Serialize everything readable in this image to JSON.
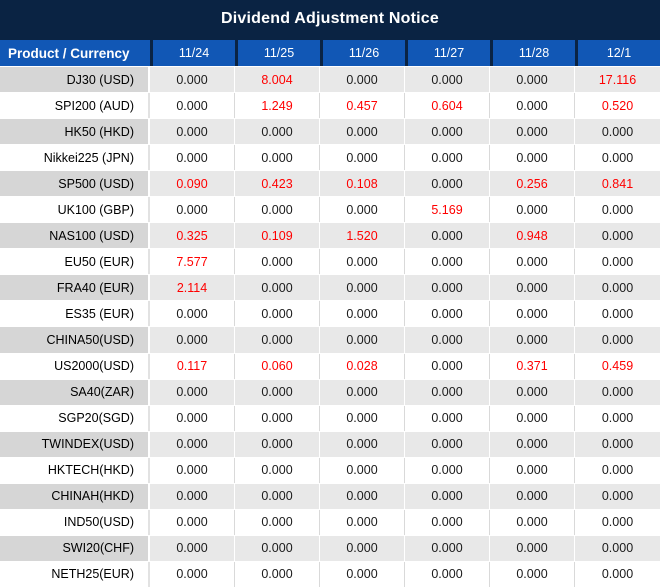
{
  "title": "Dividend Adjustment Notice",
  "header": {
    "product_label": "Product / Currency",
    "dates": [
      "11/24",
      "11/25",
      "11/26",
      "11/27",
      "11/28",
      "12/1"
    ]
  },
  "rows": [
    {
      "product": "DJ30 (USD)",
      "values": [
        "0.000",
        "8.004",
        "0.000",
        "0.000",
        "0.000",
        "17.116"
      ]
    },
    {
      "product": "SPI200 (AUD)",
      "values": [
        "0.000",
        "1.249",
        "0.457",
        "0.604",
        "0.000",
        "0.520"
      ]
    },
    {
      "product": "HK50 (HKD)",
      "values": [
        "0.000",
        "0.000",
        "0.000",
        "0.000",
        "0.000",
        "0.000"
      ]
    },
    {
      "product": "Nikkei225 (JPN)",
      "values": [
        "0.000",
        "0.000",
        "0.000",
        "0.000",
        "0.000",
        "0.000"
      ]
    },
    {
      "product": "SP500 (USD)",
      "values": [
        "0.090",
        "0.423",
        "0.108",
        "0.000",
        "0.256",
        "0.841"
      ]
    },
    {
      "product": "UK100 (GBP)",
      "values": [
        "0.000",
        "0.000",
        "0.000",
        "5.169",
        "0.000",
        "0.000"
      ]
    },
    {
      "product": "NAS100 (USD)",
      "values": [
        "0.325",
        "0.109",
        "1.520",
        "0.000",
        "0.948",
        "0.000"
      ]
    },
    {
      "product": "EU50 (EUR)",
      "values": [
        "7.577",
        "0.000",
        "0.000",
        "0.000",
        "0.000",
        "0.000"
      ]
    },
    {
      "product": "FRA40 (EUR)",
      "values": [
        "2.114",
        "0.000",
        "0.000",
        "0.000",
        "0.000",
        "0.000"
      ]
    },
    {
      "product": "ES35 (EUR)",
      "values": [
        "0.000",
        "0.000",
        "0.000",
        "0.000",
        "0.000",
        "0.000"
      ]
    },
    {
      "product": "CHINA50(USD)",
      "values": [
        "0.000",
        "0.000",
        "0.000",
        "0.000",
        "0.000",
        "0.000"
      ]
    },
    {
      "product": "US2000(USD)",
      "values": [
        "0.117",
        "0.060",
        "0.028",
        "0.000",
        "0.371",
        "0.459"
      ]
    },
    {
      "product": "SA40(ZAR)",
      "values": [
        "0.000",
        "0.000",
        "0.000",
        "0.000",
        "0.000",
        "0.000"
      ]
    },
    {
      "product": "SGP20(SGD)",
      "values": [
        "0.000",
        "0.000",
        "0.000",
        "0.000",
        "0.000",
        "0.000"
      ]
    },
    {
      "product": "TWINDEX(USD)",
      "values": [
        "0.000",
        "0.000",
        "0.000",
        "0.000",
        "0.000",
        "0.000"
      ]
    },
    {
      "product": "HKTECH(HKD)",
      "values": [
        "0.000",
        "0.000",
        "0.000",
        "0.000",
        "0.000",
        "0.000"
      ]
    },
    {
      "product": "CHINAH(HKD)",
      "values": [
        "0.000",
        "0.000",
        "0.000",
        "0.000",
        "0.000",
        "0.000"
      ]
    },
    {
      "product": "IND50(USD)",
      "values": [
        "0.000",
        "0.000",
        "0.000",
        "0.000",
        "0.000",
        "0.000"
      ]
    },
    {
      "product": "SWI20(CHF)",
      "values": [
        "0.000",
        "0.000",
        "0.000",
        "0.000",
        "0.000",
        "0.000"
      ]
    },
    {
      "product": "NETH25(EUR)",
      "values": [
        "0.000",
        "0.000",
        "0.000",
        "0.000",
        "0.000",
        "0.000"
      ]
    }
  ],
  "colors": {
    "title_bg": "#0a2343",
    "header_cell_bg": "#1157b5",
    "header_text": "#ffffff",
    "row_gray_label_bg": "#d6d6d6",
    "row_gray_value_bg": "#e8e8e8",
    "row_white_bg": "#ffffff",
    "value_zero_text": "#1b1b1b",
    "value_nonzero_text": "#ff0000"
  }
}
